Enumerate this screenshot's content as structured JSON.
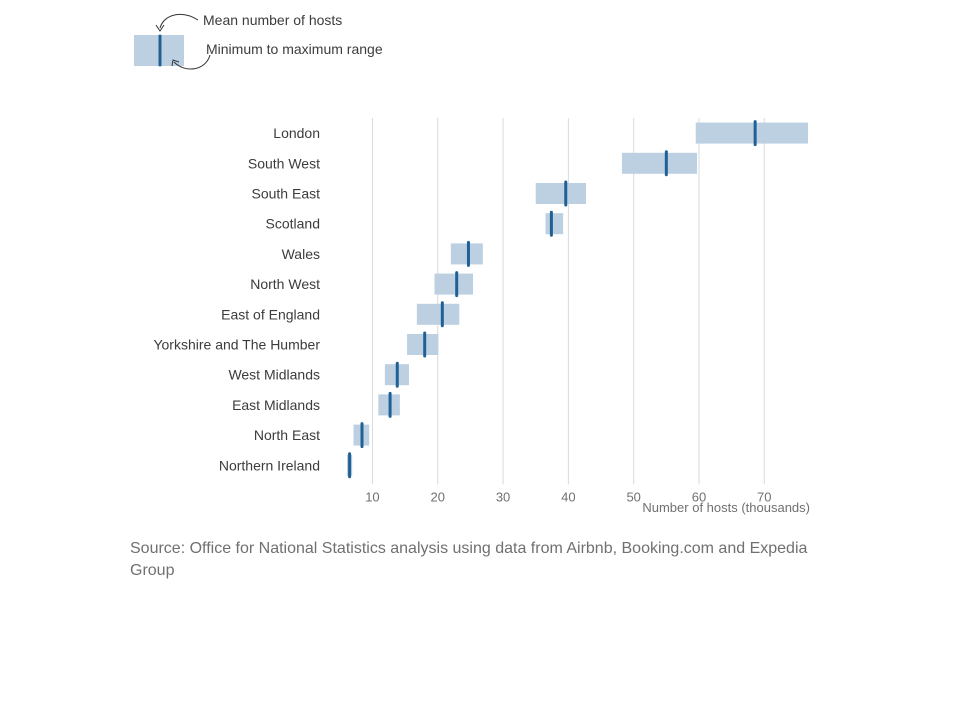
{
  "legend": {
    "mean_label": "Mean number of hosts",
    "range_label": "Minimum to maximum range"
  },
  "source": "Source: Office for National Statistics analysis using data from Airbnb, Booking.com and Expedia Group",
  "colors": {
    "range": "#bcd0e2",
    "mean": "#206095",
    "grid": "#d9d9d9"
  },
  "chart_data": {
    "type": "bar",
    "subtype": "range-with-mean",
    "title": "",
    "xlabel": "Number of hosts (thousands)",
    "ylabel": "",
    "xlim": [
      3.5,
      77
    ],
    "xticks": [
      10,
      20,
      30,
      40,
      50,
      60,
      70
    ],
    "grid": "vertical",
    "legend_position": "top-left",
    "categories": [
      "London",
      "South West",
      "South East",
      "Scotland",
      "Wales",
      "North West",
      "East of England",
      "Yorkshire and The Humber",
      "West Midlands",
      "East Midlands",
      "North East",
      "Northern Ireland"
    ],
    "min": [
      59.5,
      48.2,
      35.0,
      36.5,
      22.0,
      19.5,
      16.8,
      15.3,
      11.9,
      10.9,
      7.1,
      6.1
    ],
    "max": [
      76.7,
      59.7,
      42.7,
      39.2,
      26.9,
      25.4,
      23.3,
      20.1,
      15.6,
      14.2,
      9.5,
      6.9
    ],
    "mean": [
      68.6,
      55.0,
      39.6,
      37.4,
      24.7,
      22.9,
      20.7,
      18.0,
      13.8,
      12.7,
      8.4,
      6.5
    ]
  }
}
